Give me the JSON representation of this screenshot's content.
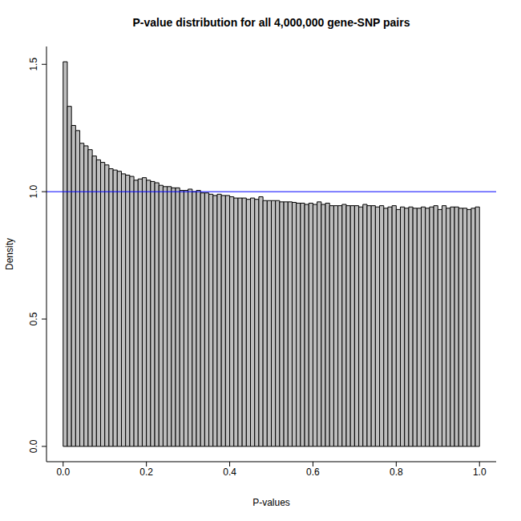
{
  "chart_data": {
    "type": "histogram",
    "title": "P-value distribution for all 4,000,000 gene-SNP pairs",
    "x_label": "P-values",
    "y_label": "Density",
    "bins": [
      0,
      0.01,
      0.02,
      0.03,
      0.04,
      0.05,
      0.06,
      0.07,
      0.08,
      0.09,
      0.1,
      0.11,
      0.12,
      0.13,
      0.14,
      0.15,
      0.16,
      0.17,
      0.18,
      0.19,
      0.2,
      0.21,
      0.22,
      0.23,
      0.24,
      0.25,
      0.26,
      0.27,
      0.28,
      0.29,
      0.3,
      0.31,
      0.32,
      0.33,
      0.34,
      0.35,
      0.36,
      0.37,
      0.38,
      0.39,
      0.4,
      0.41,
      0.42,
      0.43,
      0.44,
      0.45,
      0.46,
      0.47,
      0.48,
      0.49,
      0.5,
      0.51,
      0.52,
      0.53,
      0.54,
      0.55,
      0.56,
      0.57,
      0.58,
      0.59,
      0.6,
      0.61,
      0.62,
      0.63,
      0.64,
      0.65,
      0.66,
      0.67,
      0.68,
      0.69,
      0.7,
      0.71,
      0.72,
      0.73,
      0.74,
      0.75,
      0.76,
      0.77,
      0.78,
      0.79,
      0.8,
      0.81,
      0.82,
      0.83,
      0.84,
      0.85,
      0.86,
      0.87,
      0.88,
      0.89,
      0.9,
      0.91,
      0.92,
      0.93,
      0.94,
      0.95,
      0.96,
      0.97,
      0.98,
      0.99,
      1
    ],
    "values": [
      1.51,
      1.335,
      1.26,
      1.24,
      1.19,
      1.18,
      1.165,
      1.14,
      1.125,
      1.115,
      1.105,
      1.09,
      1.085,
      1.08,
      1.07,
      1.065,
      1.06,
      1.045,
      1.05,
      1.055,
      1.045,
      1.04,
      1.035,
      1.025,
      1.02,
      1.02,
      1.015,
      1.015,
      1.005,
      1.005,
      1.01,
      1.0,
      1.005,
      0.995,
      0.995,
      0.99,
      0.985,
      0.99,
      0.985,
      0.985,
      0.98,
      0.975,
      0.975,
      0.975,
      0.97,
      0.975,
      0.97,
      0.98,
      0.965,
      0.965,
      0.965,
      0.965,
      0.96,
      0.96,
      0.96,
      0.958,
      0.955,
      0.955,
      0.95,
      0.955,
      0.95,
      0.96,
      0.95,
      0.955,
      0.945,
      0.945,
      0.945,
      0.95,
      0.945,
      0.945,
      0.945,
      0.94,
      0.95,
      0.945,
      0.945,
      0.94,
      0.945,
      0.935,
      0.94,
      0.945,
      0.93,
      0.94,
      0.935,
      0.94,
      0.935,
      0.935,
      0.94,
      0.935,
      0.94,
      0.945,
      0.93,
      0.945,
      0.935,
      0.94,
      0.94,
      0.935,
      0.935,
      0.93,
      0.935,
      0.94
    ],
    "color": "#bebebe",
    "xlim": [
      -0.04,
      1.04
    ],
    "xticks": [
      {
        "value": 0,
        "label": "0.0"
      },
      0.2,
      0.4,
      0.6,
      0.8,
      {
        "value": 1,
        "label": "1.0"
      }
    ],
    "ylim": [
      -0.06,
      1.57
    ],
    "yticks": [
      {
        "value": 0,
        "label": "0.0"
      },
      0.5,
      {
        "value": 1,
        "label": "1.0"
      },
      1.5
    ],
    "reference_line": {
      "value": 1,
      "color": "#0000ff"
    },
    "grid": false
  }
}
